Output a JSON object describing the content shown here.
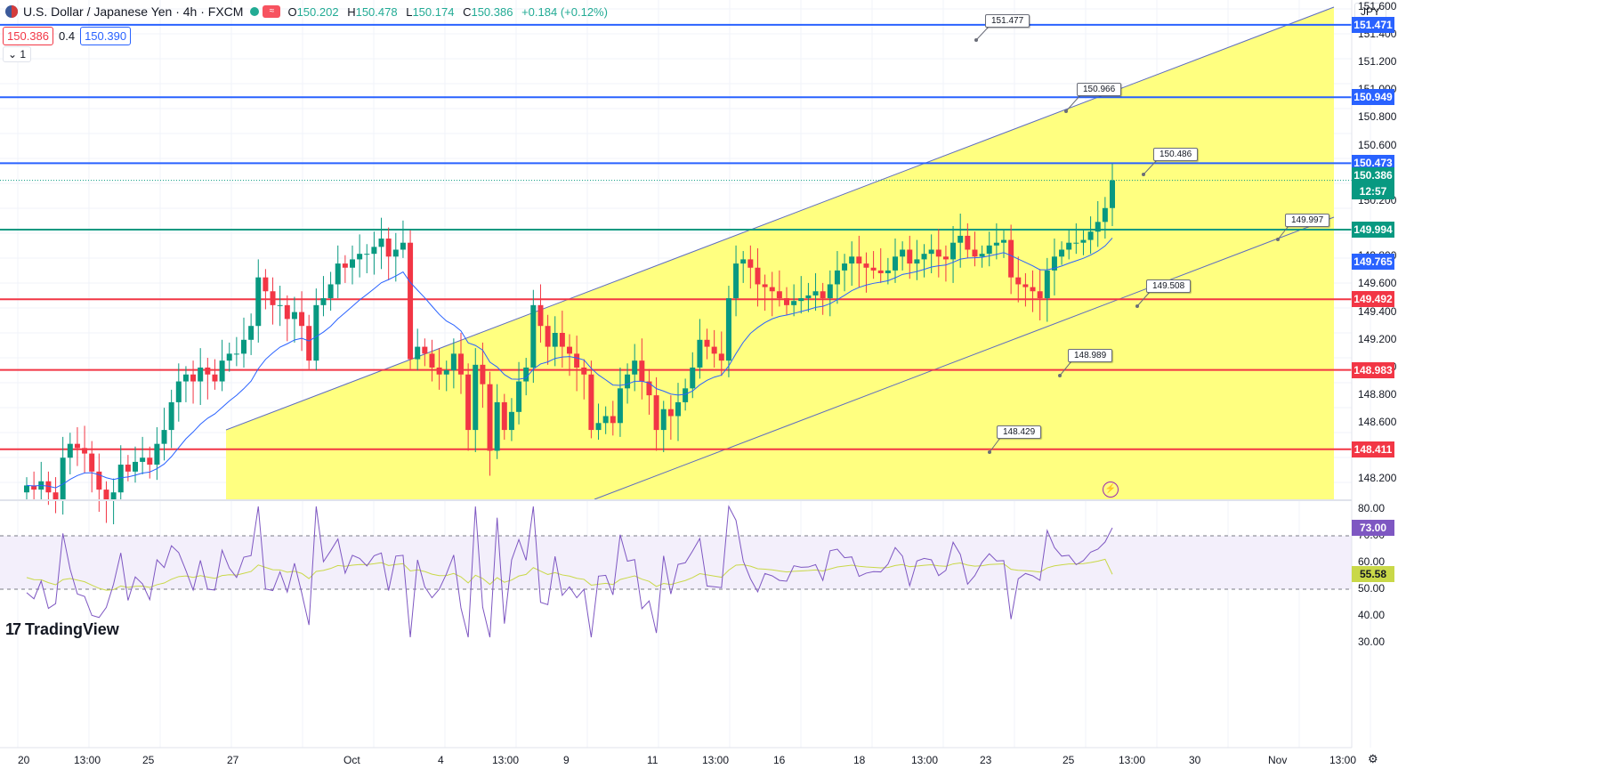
{
  "header": {
    "symbol_title": "U.S. Dollar / Japanese Yen · 4h · FXCM",
    "ohlc": [
      {
        "label": "O",
        "value": "150.202"
      },
      {
        "label": "H",
        "value": "150.478"
      },
      {
        "label": "L",
        "value": "150.174"
      },
      {
        "label": "C",
        "value": "150.386"
      },
      {
        "label": "",
        "value": "+0.184 (+0.12%)"
      }
    ],
    "bid": "150.386",
    "spread": "0.4",
    "ask": "150.390",
    "indicator_toggle": "1"
  },
  "currency_selector": "JPY",
  "price_axis": {
    "ticks": [
      "151.600",
      "151.400",
      "151.200",
      "151.000",
      "150.800",
      "150.600",
      "150.200",
      "149.800",
      "149.600",
      "149.400",
      "149.200",
      "149.000",
      "148.800",
      "148.600",
      "148.200"
    ],
    "badges": [
      {
        "label": "151.471",
        "color": "#2962ff"
      },
      {
        "label": "150.949",
        "color": "#2962ff"
      },
      {
        "label": "150.473",
        "color": "#2962ff"
      },
      {
        "label": "150.386",
        "color": "#089981"
      },
      {
        "label": "12:57",
        "color": "#089981"
      },
      {
        "label": "149.994",
        "color": "#089981"
      },
      {
        "label": "149.765",
        "color": "#2962ff"
      },
      {
        "label": "149.492",
        "color": "#f23645"
      },
      {
        "label": "148.983",
        "color": "#f23645"
      },
      {
        "label": "148.411",
        "color": "#f23645"
      }
    ]
  },
  "rsi_axis": {
    "ticks": [
      "80.00",
      "70.00",
      "60.00",
      "50.00",
      "40.00",
      "30.00"
    ],
    "badges": [
      {
        "label": "73.00",
        "color": "#7e57c2"
      },
      {
        "label": "55.58",
        "color": "#c9d848"
      }
    ]
  },
  "time_axis": [
    "20",
    "13:00",
    "25",
    "27",
    "Oct",
    "4",
    "13:00",
    "9",
    "11",
    "13:00",
    "16",
    "18",
    "13:00",
    "23",
    "25",
    "13:00",
    "30",
    "Nov",
    "13:00"
  ],
  "callouts": [
    "151.477",
    "150.966",
    "150.486",
    "149.997",
    "149.508",
    "148.989",
    "148.429"
  ],
  "branding": "TradingView",
  "chart_data": {
    "type": "candlestick",
    "symbol": "USDJPY",
    "timeframe": "4h",
    "price_range": [
      148.05,
      151.65
    ],
    "horizontal_levels": [
      {
        "value": 151.471,
        "color": "#2962ff"
      },
      {
        "value": 150.949,
        "color": "#2962ff"
      },
      {
        "value": 150.473,
        "color": "#2962ff"
      },
      {
        "value": 149.994,
        "color": "#089981"
      },
      {
        "value": 149.492,
        "color": "#f23645"
      },
      {
        "value": 148.983,
        "color": "#f23645"
      },
      {
        "value": 148.411,
        "color": "#f23645"
      }
    ],
    "channel": {
      "upper": [
        [
          "Sep 27",
          148.58
        ],
        [
          "Nov 1",
          151.65
        ]
      ],
      "lower": [
        [
          "Oct 9",
          148.05
        ],
        [
          "Oct 30",
          149.95
        ]
      ],
      "fill": "#ffff80"
    },
    "closes": [
      148.15,
      148.12,
      148.18,
      148.1,
      148.05,
      148.35,
      148.45,
      148.42,
      148.38,
      148.25,
      148.12,
      148.05,
      148.1,
      148.3,
      148.25,
      148.32,
      148.35,
      148.3,
      148.45,
      148.55,
      148.75,
      148.9,
      148.95,
      148.9,
      149.0,
      148.95,
      148.9,
      149.05,
      149.1,
      149.1,
      149.2,
      149.3,
      149.65,
      149.55,
      149.45,
      149.45,
      149.35,
      149.4,
      149.3,
      149.05,
      149.45,
      149.5,
      149.6,
      149.75,
      149.72,
      149.78,
      149.82,
      149.82,
      149.87,
      149.93,
      149.8,
      149.85,
      149.9,
      149.06,
      149.15,
      149.1,
      149.0,
      148.95,
      148.98,
      149.1,
      148.95,
      148.55,
      149.02,
      148.88,
      148.4,
      148.75,
      148.55,
      148.68,
      148.9,
      149.0,
      149.45,
      149.3,
      149.15,
      149.25,
      149.15,
      149.1,
      149.0,
      148.95,
      148.55,
      148.6,
      148.65,
      148.6,
      148.85,
      148.95,
      149.05,
      148.9,
      148.8,
      148.55,
      148.7,
      148.65,
      148.75,
      148.85,
      149.0,
      149.2,
      149.15,
      149.1,
      149.05,
      149.5,
      149.75,
      149.78,
      149.72,
      149.6,
      149.58,
      149.55,
      149.5,
      149.45,
      149.48,
      149.5,
      149.52,
      149.55,
      149.5,
      149.6,
      149.7,
      149.75,
      149.8,
      149.75,
      149.72,
      149.7,
      149.68,
      149.7,
      149.8,
      149.85,
      149.75,
      149.78,
      149.82,
      149.85,
      149.8,
      149.78,
      149.9,
      149.95,
      149.85,
      149.8,
      149.82,
      149.88,
      149.9,
      149.92,
      149.65,
      149.6,
      149.58,
      149.55,
      149.5,
      149.7,
      149.8,
      149.85,
      149.9,
      149.9,
      149.92,
      149.98,
      150.05,
      150.15,
      150.35
    ],
    "ma_color": "#2962ff",
    "rsi": {
      "range": [
        30,
        82
      ],
      "levels": [
        70,
        50
      ],
      "last": 73.0,
      "signal_last": 55.58,
      "rsi_color": "#7e57c2",
      "signal_color": "#c9d848"
    }
  }
}
